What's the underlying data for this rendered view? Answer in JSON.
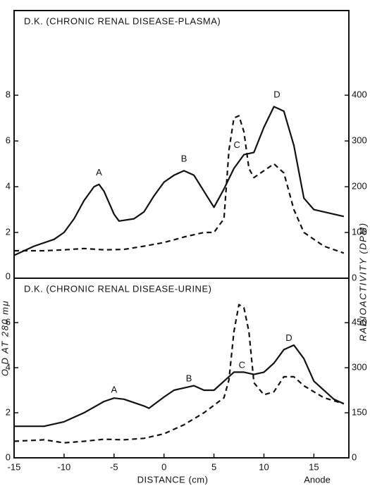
{
  "chart_data": [
    {
      "type": "line",
      "title": "D.K. (CHRONIC RENAL DISEASE-PLASMA)",
      "xlim": [
        -15,
        18.5
      ],
      "ylim": [
        0,
        11.7
      ],
      "yticks": [
        0,
        2,
        4,
        6,
        8
      ],
      "y2lim": [
        0,
        585
      ],
      "y2ticks": [
        0,
        100,
        200,
        300,
        400
      ],
      "series": [
        {
          "color": "#111111",
          "linestyle": "solid",
          "x": [
            -15,
            -13,
            -11,
            -10,
            -9,
            -8,
            -7,
            -6.5,
            -6,
            -5,
            -4.5,
            -3,
            -2,
            -1,
            0,
            1,
            2,
            3,
            4,
            5,
            6,
            7,
            8,
            9,
            10,
            11,
            12,
            13,
            14,
            15,
            17,
            18
          ],
          "values": [
            1.0,
            1.4,
            1.7,
            2.0,
            2.6,
            3.4,
            4.0,
            4.1,
            3.8,
            2.8,
            2.5,
            2.6,
            2.9,
            3.6,
            4.2,
            4.5,
            4.7,
            4.5,
            3.8,
            3.1,
            3.9,
            4.8,
            5.4,
            5.5,
            6.6,
            7.5,
            7.3,
            5.8,
            3.5,
            3.0,
            2.8,
            2.7
          ]
        },
        {
          "color": "#111111",
          "linestyle": "dashed",
          "axis": "y2",
          "x": [
            -15,
            -12,
            -10,
            -8,
            -6,
            -4,
            -2,
            0,
            2,
            4,
            5,
            6,
            6.5,
            7,
            7.5,
            8,
            8.5,
            9,
            10,
            11,
            12,
            13,
            14,
            16,
            18
          ],
          "values": [
            60,
            60,
            62,
            65,
            62,
            63,
            70,
            78,
            90,
            100,
            100,
            130,
            280,
            350,
            355,
            320,
            240,
            220,
            235,
            250,
            230,
            150,
            100,
            70,
            55
          ]
        }
      ],
      "annotations": [
        {
          "text": "A",
          "x": -6.5,
          "y": 4.6
        },
        {
          "text": "B",
          "x": 2,
          "y": 5.2
        },
        {
          "text": "C",
          "x": 7.3,
          "y": 5.8
        },
        {
          "text": "D",
          "x": 11.3,
          "y": 8.0
        }
      ]
    },
    {
      "type": "line",
      "title": "D.K. (CHRONIC RENAL DISEASE-URINE)",
      "xlabel": "DISTANCE (cm)",
      "x_note": "Anode",
      "ylabel": "O D AT 280 mμ",
      "y2label": "RADIOACTIVITY (DPM)",
      "xlim": [
        -15,
        18.5
      ],
      "xticks": [
        -15,
        -10,
        -5,
        0,
        5,
        10,
        15
      ],
      "ylim": [
        0,
        7.97
      ],
      "yticks": [
        0,
        2,
        4,
        6
      ],
      "y2lim": [
        0,
        598
      ],
      "y2ticks": [
        0,
        150,
        300,
        450
      ],
      "series": [
        {
          "color": "#111111",
          "linestyle": "solid",
          "x": [
            -15,
            -12,
            -10,
            -8,
            -6,
            -5,
            -4,
            -2,
            -1.5,
            0,
            1,
            3,
            4,
            5,
            6,
            7,
            8,
            9,
            10,
            11,
            12,
            13,
            14,
            15,
            17,
            18
          ],
          "values": [
            1.4,
            1.4,
            1.6,
            2.0,
            2.5,
            2.65,
            2.6,
            2.3,
            2.2,
            2.7,
            3.0,
            3.2,
            3.0,
            3.0,
            3.4,
            3.8,
            3.8,
            3.7,
            3.8,
            4.2,
            4.8,
            5.0,
            4.4,
            3.4,
            2.6,
            2.4
          ]
        },
        {
          "color": "#111111",
          "linestyle": "dashed",
          "axis": "y2",
          "x": [
            -15,
            -12,
            -10,
            -8,
            -6,
            -4,
            -2,
            0,
            2,
            4,
            6,
            6.5,
            7,
            7.5,
            8,
            8.5,
            9,
            10,
            11,
            12,
            13,
            14,
            16,
            18
          ],
          "values": [
            55,
            60,
            50,
            55,
            62,
            60,
            65,
            80,
            110,
            150,
            200,
            260,
            420,
            510,
            500,
            420,
            250,
            210,
            220,
            270,
            270,
            240,
            200,
            180
          ]
        }
      ],
      "annotations": [
        {
          "text": "A",
          "x": -5,
          "y": 3.0
        },
        {
          "text": "B",
          "x": 2.5,
          "y": 3.5
        },
        {
          "text": "C",
          "x": 7.8,
          "y": 4.1
        },
        {
          "text": "D",
          "x": 12.5,
          "y": 5.3
        }
      ]
    }
  ]
}
